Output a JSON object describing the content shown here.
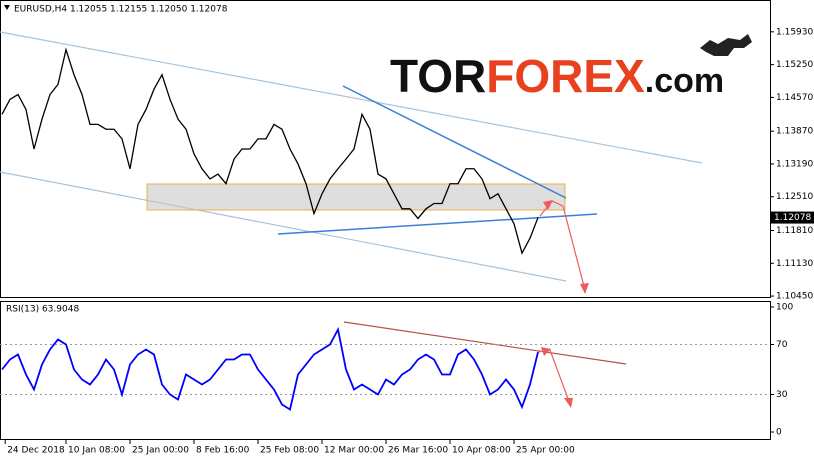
{
  "logo": {
    "parts": [
      "TOR",
      "FOREX",
      ".com"
    ]
  },
  "chart_data": [
    {
      "type": "line",
      "title": "EURUSD,H4  1.12055 1.12155 1.12050 1.12078",
      "color": "#000000",
      "values": [
        1.1422,
        1.1453,
        1.1463,
        1.1432,
        1.135,
        1.1412,
        1.1463,
        1.1484,
        1.1556,
        1.1504,
        1.1463,
        1.1401,
        1.1401,
        1.1391,
        1.1391,
        1.1371,
        1.1309,
        1.1401,
        1.1432,
        1.1474,
        1.1504,
        1.1453,
        1.1412,
        1.1391,
        1.134,
        1.1309,
        1.1288,
        1.1298,
        1.1278,
        1.1329,
        1.135,
        1.135,
        1.1371,
        1.1371,
        1.1401,
        1.1391,
        1.135,
        1.1319,
        1.1278,
        1.1216,
        1.1257,
        1.1288,
        1.1309,
        1.1329,
        1.135,
        1.1422,
        1.1391,
        1.1298,
        1.1288,
        1.1257,
        1.1226,
        1.1226,
        1.1206,
        1.1226,
        1.1237,
        1.1237,
        1.1278,
        1.1278,
        1.1309,
        1.1309,
        1.1288,
        1.1247,
        1.1257,
        1.1226,
        1.1195,
        1.1134,
        1.1165,
        1.12078
      ],
      "last_price": {
        "value": 1.12078,
        "label": "1.12078"
      },
      "xlim": [
        -0.25,
        96
      ],
      "ylim": [
        1.1041,
        1.1659
      ],
      "yticks": [
        {
          "value": 1.1593,
          "label": "1.15930"
        },
        {
          "value": 1.1525,
          "label": "1.15250"
        },
        {
          "value": 1.1457,
          "label": "1.14570"
        },
        {
          "value": 1.1387,
          "label": "1.13870"
        },
        {
          "value": 1.1319,
          "label": "1.13190"
        },
        {
          "value": 1.1251,
          "label": "1.12510"
        },
        {
          "value": 1.1181,
          "label": "1.11810"
        },
        {
          "value": 1.1113,
          "label": "1.11130"
        },
        {
          "value": 1.1045,
          "label": "1.10450"
        }
      ]
    },
    {
      "type": "line",
      "title": "RSI(13) 63.9048",
      "color": "#0000ff",
      "values": [
        50,
        58,
        62,
        46,
        34,
        54,
        66,
        74,
        70,
        50,
        42,
        38,
        46,
        58,
        50,
        30,
        54,
        62,
        66,
        62,
        38,
        30,
        26,
        46,
        42,
        38,
        42,
        50,
        58,
        58,
        62,
        62,
        50,
        42,
        34,
        22,
        18,
        46,
        54,
        62,
        66,
        70,
        82,
        50,
        34,
        38,
        34,
        30,
        42,
        38,
        46,
        50,
        58,
        62,
        58,
        46,
        46,
        62,
        66,
        58,
        46,
        30,
        34,
        42,
        34,
        20,
        38,
        63.9048
      ],
      "xlim": [
        -0.25,
        96
      ],
      "ylim": [
        -6.4,
        104
      ],
      "yticks": [
        100,
        70,
        30,
        0
      ],
      "xticks": [
        {
          "value": 0.4,
          "label": "24 Dec 2018"
        },
        {
          "value": 8,
          "label": "10 Jan 08:00"
        },
        {
          "value": 16,
          "label": "25 Jan 00:00"
        },
        {
          "value": 24,
          "label": "8 Feb 16:00"
        },
        {
          "value": 32,
          "label": "25 Feb 08:00"
        },
        {
          "value": 40,
          "label": "12 Mar 00:00"
        },
        {
          "value": 48,
          "label": "26 Mar 16:00"
        },
        {
          "value": 56,
          "label": "10 Apr 08:00"
        },
        {
          "value": 64,
          "label": "25 Apr 00:00"
        }
      ]
    }
  ]
}
